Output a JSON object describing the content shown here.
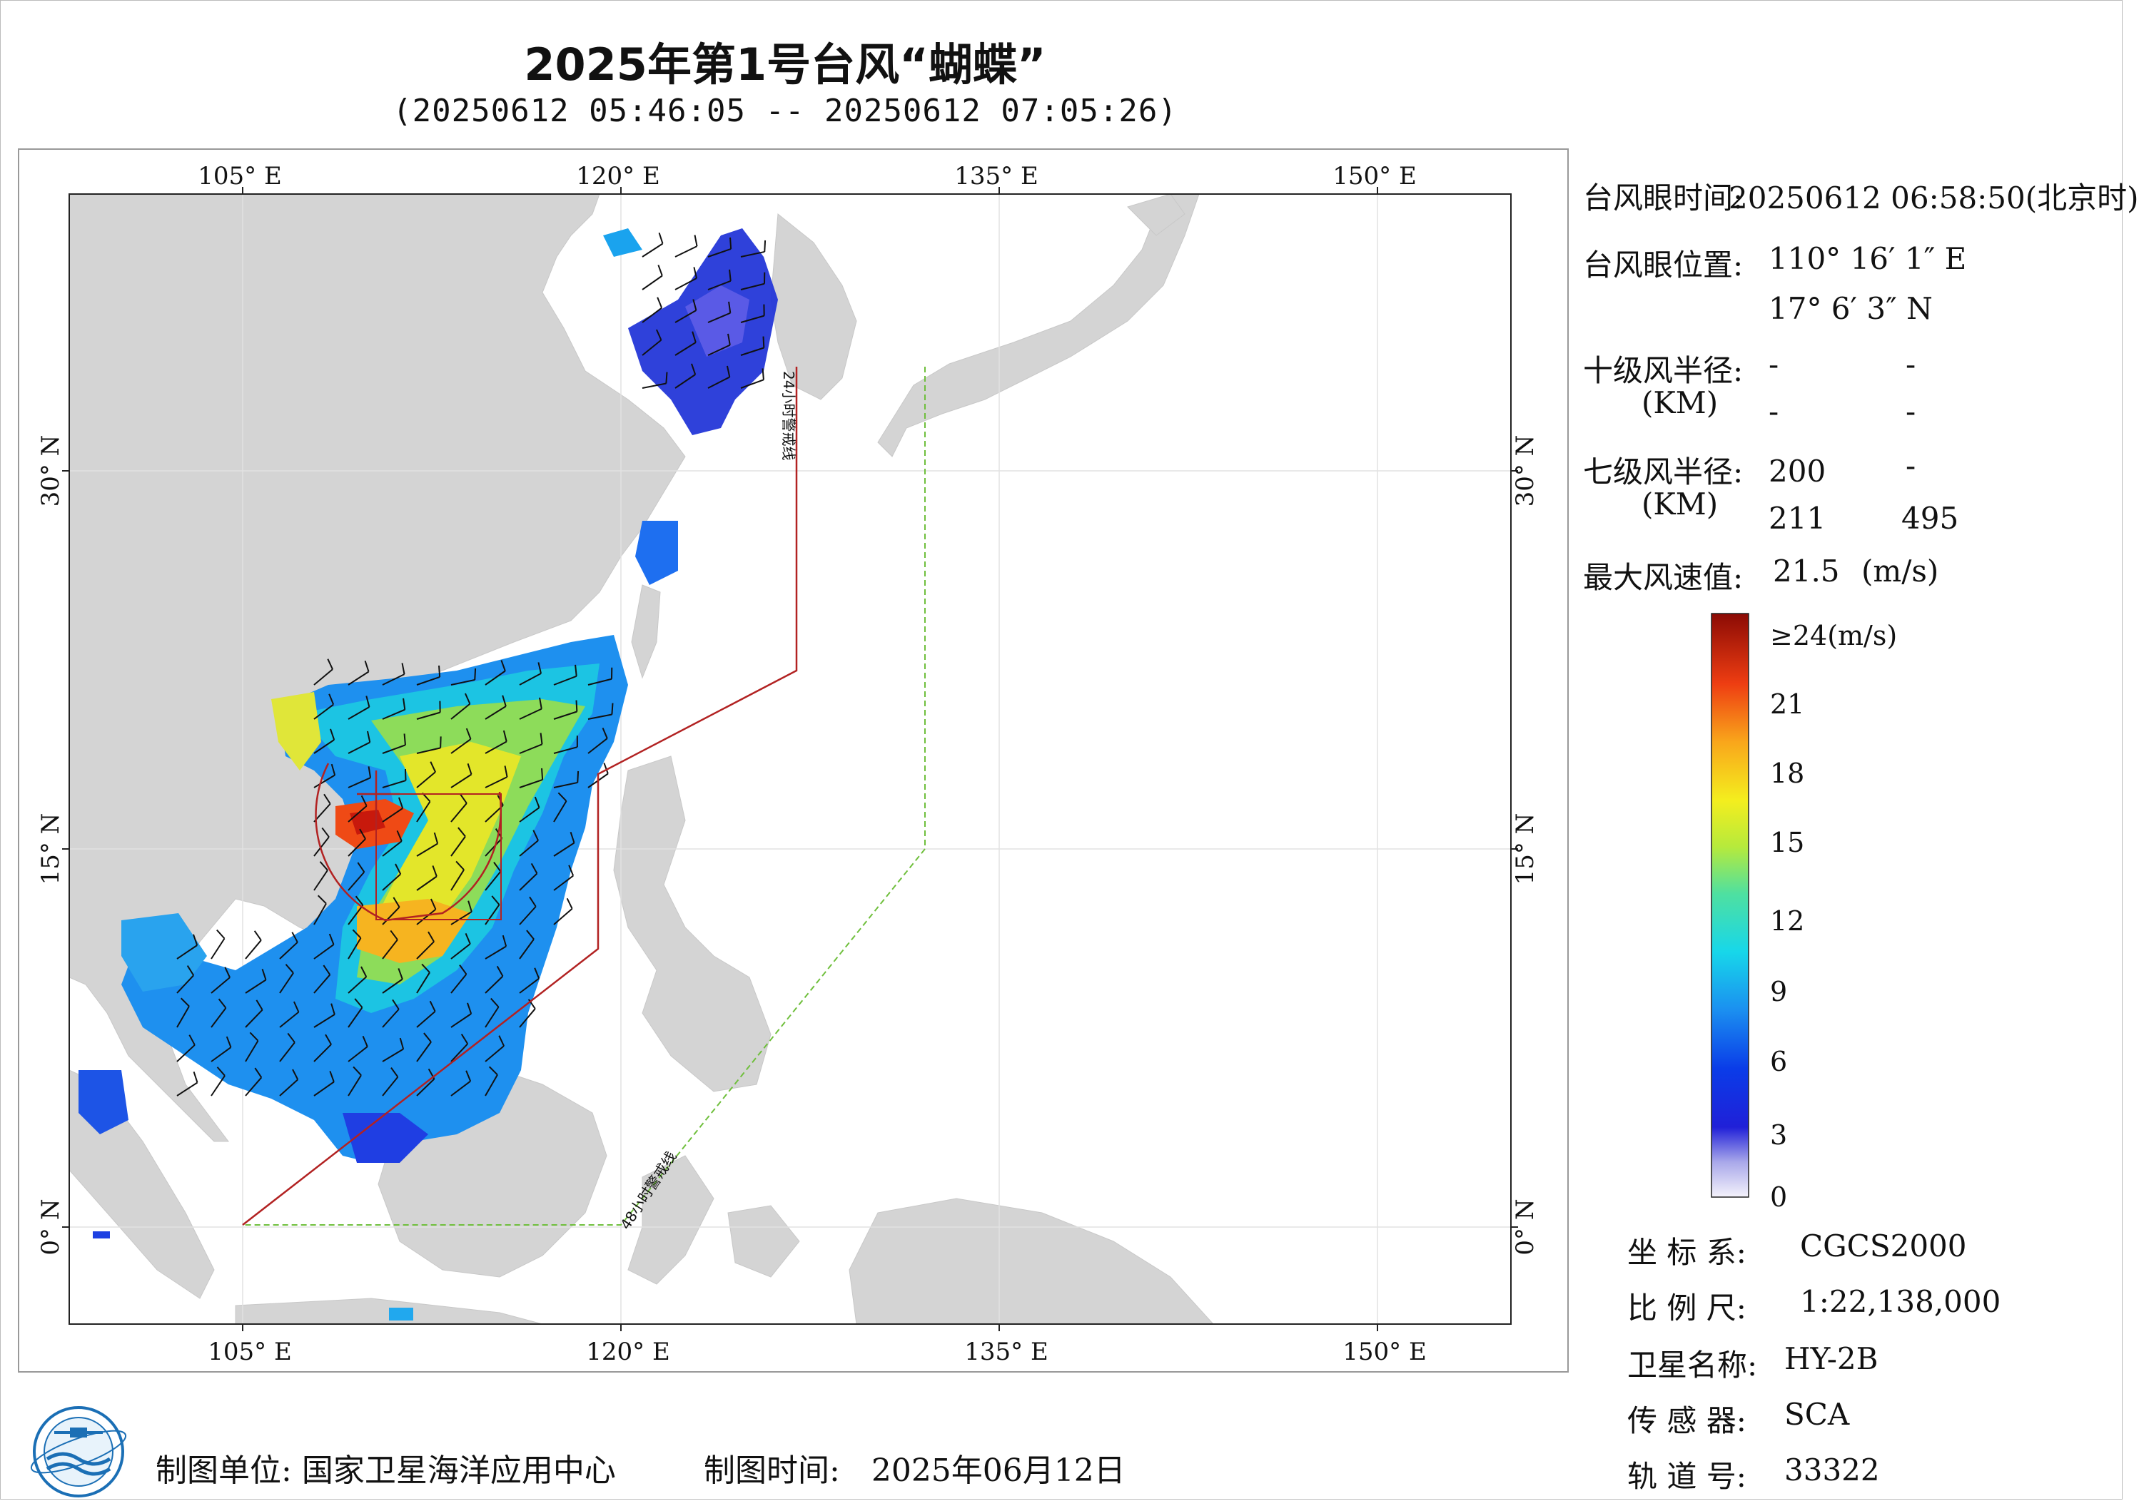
{
  "title": "2025年第1号台风“蝴蝶”",
  "subtitle": "(20250612 05:46:05 -- 20250612 07:05:26)",
  "map": {
    "lon_ticks_top": [
      "105° E",
      "120° E",
      "135° E",
      "150° E"
    ],
    "lon_ticks_bottom": [
      "105° E",
      "120° E",
      "135° E",
      "150° E"
    ],
    "lat_ticks_left": [
      "30° N",
      "15° N",
      "0° N"
    ],
    "lat_ticks_right": [
      "30° N",
      "15° N",
      "0° N"
    ],
    "warning_24h_label": "24小时警戒线",
    "warning_48h_label": "48小时警戒线",
    "colors": {
      "land": "#d4d4d4",
      "warning_24h": "#b22222",
      "warning_48h": "#6fbf3c"
    }
  },
  "info": {
    "eye_time_label": "台风眼时间:",
    "eye_time_value": "20250612 06:58:50(北京时)",
    "eye_pos_label": "台风眼位置:",
    "eye_lon": "110° 16′ 1″ E",
    "eye_lat": "17° 6′ 3″ N",
    "r10_label": "十级风半径:",
    "r10_unit": "(KM)",
    "r10_values": [
      "-",
      "-",
      "-",
      "-"
    ],
    "r7_label": "七级风半径:",
    "r7_unit": "(KM)",
    "r7_values": [
      "200",
      "-",
      "211",
      "495"
    ],
    "max_wind_label": "最大风速值:",
    "max_wind_value": "21.5",
    "max_wind_unit": "(m/s)"
  },
  "colorbar": {
    "labels": [
      "≥24(m/s)",
      "21",
      "18",
      "15",
      "12",
      "9",
      "6",
      "3",
      "0"
    ]
  },
  "meta": {
    "crs_label": "坐 标 系:",
    "crs_value": "CGCS2000",
    "scale_label": "比 例 尺:",
    "scale_value": "1:22,138,000",
    "satellite_label": "卫星名称:",
    "satellite_value": "HY-2B",
    "sensor_label": "传 感 器:",
    "sensor_value": "SCA",
    "orbit_label": "轨 道 号:",
    "orbit_value": "33322"
  },
  "footer": {
    "org_label": "制图单位:",
    "org_value": "国家卫星海洋应用中心",
    "time_label": "制图时间:",
    "time_value": "2025年06月12日"
  }
}
